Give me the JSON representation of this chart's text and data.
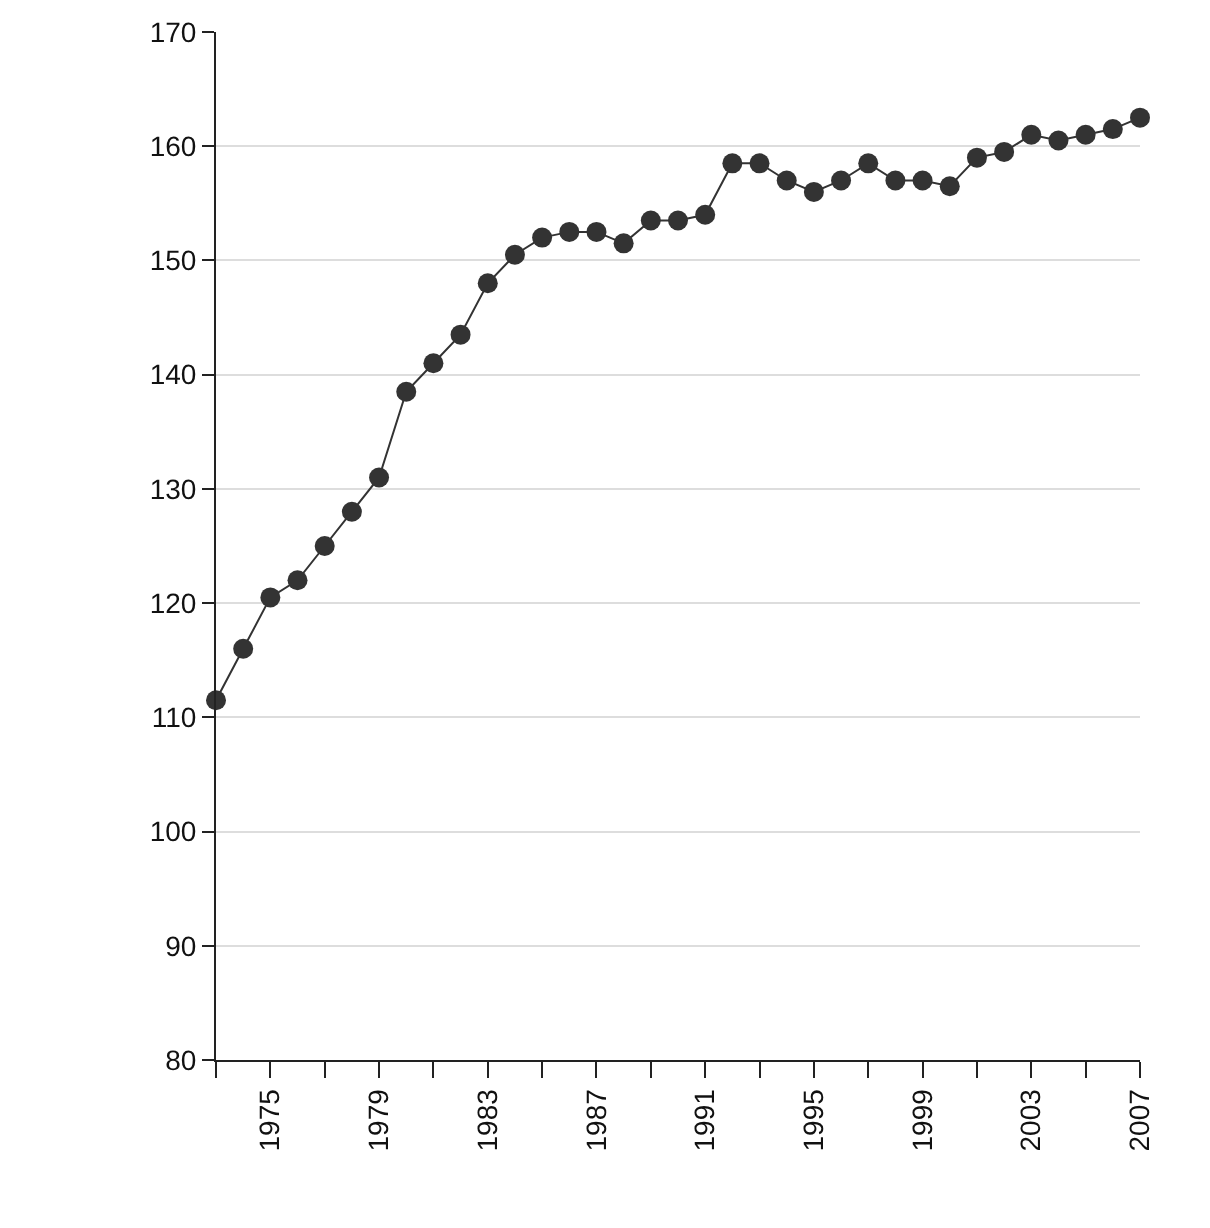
{
  "chart_data": {
    "type": "line",
    "marker": "circle",
    "grid": "y",
    "legend": false,
    "x": [
      1973,
      1974,
      1975,
      1976,
      1977,
      1978,
      1979,
      1980,
      1981,
      1982,
      1983,
      1984,
      1985,
      1986,
      1987,
      1988,
      1989,
      1990,
      1991,
      1992,
      1993,
      1994,
      1995,
      1996,
      1997,
      1998,
      1999,
      2000,
      2001,
      2002,
      2003,
      2004,
      2005,
      2006,
      2007
    ],
    "series": [
      {
        "color": "#333333",
        "values": [
          111.5,
          116,
          120.5,
          122,
          125,
          128,
          131,
          138.5,
          141,
          143.5,
          148,
          150.5,
          152,
          152.5,
          152.5,
          151.5,
          153.5,
          153.5,
          154,
          158.5,
          158.5,
          157,
          156,
          157,
          158.5,
          157,
          157,
          156.5,
          159,
          159.5,
          161,
          160.5,
          161,
          161.5,
          162.5
        ]
      }
    ],
    "xlim": [
      1973,
      2007
    ],
    "xticks": [
      {
        "value": 1973,
        "label": null
      },
      1975,
      {
        "value": 1977,
        "label": null
      },
      1979,
      {
        "value": 1981,
        "label": null
      },
      1983,
      {
        "value": 1985,
        "label": null
      },
      1987,
      {
        "value": 1989,
        "label": null
      },
      1991,
      {
        "value": 1993,
        "label": null
      },
      1995,
      {
        "value": 1997,
        "label": null
      },
      1999,
      {
        "value": 2001,
        "label": null
      },
      2003,
      {
        "value": 2005,
        "label": null
      },
      2007
    ],
    "ylim": [
      80,
      170
    ],
    "yticks": [
      80,
      90,
      100,
      110,
      120,
      130,
      140,
      150,
      160,
      170
    ]
  }
}
